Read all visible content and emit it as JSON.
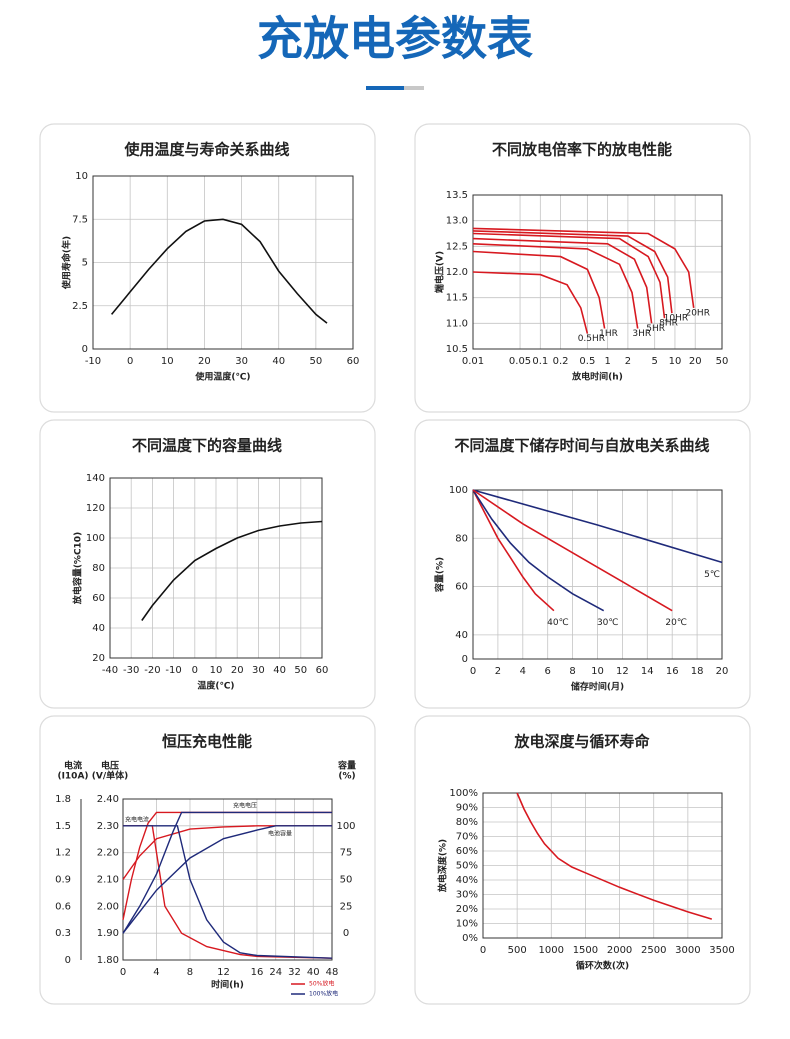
{
  "title": "充放电参数表",
  "chart_data": [
    {
      "type": "line",
      "title": "使用温度与寿命关系曲线",
      "xlabel": "使用温度(℃)",
      "ylabel": "使用寿命(年)",
      "grid": true,
      "xlim": [
        -10,
        60
      ],
      "xticks": [
        -10,
        0,
        10,
        20,
        30,
        40,
        50,
        60
      ],
      "ylim": [
        0,
        10
      ],
      "yticks": [
        0,
        2.5,
        5,
        7.5,
        10
      ],
      "series": [
        {
          "color": "#111111",
          "x": [
            -5,
            0,
            5,
            10,
            15,
            20,
            25,
            30,
            35,
            40,
            45,
            50,
            53
          ],
          "values": [
            2,
            3.3,
            4.6,
            5.8,
            6.8,
            7.4,
            7.5,
            7.2,
            6.2,
            4.5,
            3.2,
            2,
            1.5
          ]
        }
      ]
    },
    {
      "type": "line",
      "title": "不同放电倍率下的放电性能",
      "xlabel": "放电时间(h)",
      "ylabel": "端电压(V)",
      "grid": true,
      "xscale": "log",
      "xlim": [
        0.01,
        50
      ],
      "xticks": [
        0.01,
        0.05,
        0.1,
        0.2,
        0.5,
        1,
        2,
        5,
        10,
        20,
        50
      ],
      "ylim": [
        10.5,
        13.5
      ],
      "yticks": [
        {
          "value": 10.5,
          "label": "10.5"
        },
        {
          "value": 11,
          "label": "11.0"
        },
        {
          "value": 11.5,
          "label": "11.5"
        },
        {
          "value": 12,
          "label": "12.0"
        },
        {
          "value": 12.5,
          "label": "12.5"
        },
        {
          "value": 13,
          "label": "13.0"
        },
        {
          "value": 13.5,
          "label": "13.5"
        }
      ],
      "series": [
        {
          "name": "0.5HR",
          "color": "#d71920",
          "x": [
            0.01,
            0.1,
            0.25,
            0.4,
            0.5
          ],
          "values": [
            12.0,
            11.95,
            11.75,
            11.3,
            10.8
          ]
        },
        {
          "name": "1HR",
          "color": "#d71920",
          "x": [
            0.01,
            0.2,
            0.5,
            0.75,
            0.9
          ],
          "values": [
            12.4,
            12.3,
            12.05,
            11.5,
            10.9
          ]
        },
        {
          "name": "3HR",
          "color": "#d71920",
          "x": [
            0.01,
            0.5,
            1.5,
            2.3,
            2.8
          ],
          "values": [
            12.55,
            12.45,
            12.15,
            11.6,
            10.9
          ]
        },
        {
          "name": "5HR",
          "color": "#d71920",
          "x": [
            0.01,
            1,
            2.5,
            3.8,
            4.5
          ],
          "values": [
            12.65,
            12.55,
            12.25,
            11.7,
            11.0
          ]
        },
        {
          "name": "8HR",
          "color": "#d71920",
          "x": [
            0.01,
            1.5,
            4,
            6,
            7
          ],
          "values": [
            12.75,
            12.65,
            12.3,
            11.8,
            11.1
          ]
        },
        {
          "name": "10HR",
          "color": "#d71920",
          "x": [
            0.01,
            2,
            5,
            7.8,
            9
          ],
          "values": [
            12.8,
            12.7,
            12.4,
            11.9,
            11.2
          ]
        },
        {
          "name": "20HR",
          "color": "#d71920",
          "x": [
            0.01,
            4,
            10,
            16,
            19
          ],
          "values": [
            12.85,
            12.75,
            12.45,
            12.0,
            11.3
          ]
        }
      ]
    },
    {
      "type": "line",
      "title": "不同温度下的容量曲线",
      "xlabel": "温度(℃)",
      "ylabel": "放电容量(%C10)",
      "grid": true,
      "xlim": [
        -40,
        60
      ],
      "xticks": [
        -40,
        -30,
        -20,
        -10,
        0,
        10,
        20,
        30,
        40,
        50,
        60
      ],
      "ylim": [
        20,
        140
      ],
      "yticks": [
        20,
        40,
        60,
        80,
        100,
        120,
        140
      ],
      "series": [
        {
          "color": "#111111",
          "x": [
            -25,
            -20,
            -10,
            0,
            10,
            20,
            30,
            40,
            50,
            60
          ],
          "values": [
            45,
            55,
            72,
            85,
            93,
            100,
            105,
            108,
            110,
            111
          ]
        }
      ]
    },
    {
      "type": "line",
      "title": "不同温度下储存时间与自放电关系曲线",
      "xlabel": "储存时间(月)",
      "ylabel": "容量(%)",
      "grid": true,
      "xlim": [
        0,
        20
      ],
      "xticks": [
        0,
        2,
        4,
        6,
        8,
        10,
        12,
        14,
        16,
        18,
        20
      ],
      "ylim": [
        30,
        100
      ],
      "yticks": [
        {
          "value": 30,
          "label": "0"
        },
        40,
        60,
        80,
        100
      ],
      "series": [
        {
          "name": "5℃",
          "color": "#1f2a7a",
          "x": [
            0,
            10,
            20
          ],
          "values": [
            100,
            85.5,
            70
          ]
        },
        {
          "name": "40℃",
          "color": "#d71920",
          "x": [
            0,
            1,
            2,
            3,
            4,
            5,
            6.5
          ],
          "values": [
            100,
            90,
            80,
            72,
            64,
            57,
            50
          ]
        },
        {
          "name": "30℃",
          "color": "#1f2a7a",
          "x": [
            0,
            1.5,
            3,
            4.5,
            6,
            8,
            10.5
          ],
          "values": [
            100,
            88,
            78,
            70,
            64,
            57,
            50
          ]
        },
        {
          "name": "20℃",
          "color": "#d71920",
          "x": [
            0,
            4,
            8,
            12,
            16
          ],
          "values": [
            100,
            86,
            74,
            62,
            50
          ]
        }
      ]
    },
    {
      "type": "multi_axis_line",
      "title": "恒压充电性能",
      "xlabel": "时间(h)",
      "grid": true,
      "xlim": [
        0,
        48
      ],
      "xticks": [
        0,
        4,
        8,
        12,
        16,
        24,
        32,
        40,
        48
      ],
      "axes": {
        "current": {
          "title": "电流",
          "unit": "(I10A)",
          "ylim": [
            0,
            1.8
          ],
          "yticks": [
            0,
            0.3,
            0.6,
            0.9,
            1.2,
            1.5,
            1.8
          ]
        },
        "voltage": {
          "title": "电压",
          "unit": "(V/单体)",
          "ylim": [
            1.8,
            2.4
          ],
          "yticks": [
            {
              "value": 1.8,
              "label": "1.80"
            },
            {
              "value": 1.9,
              "label": "1.90"
            },
            {
              "value": 2,
              "label": "2.00"
            },
            {
              "value": 2.1,
              "label": "2.10"
            },
            {
              "value": 2.2,
              "label": "2.20"
            },
            {
              "value": 2.3,
              "label": "2.30"
            },
            {
              "value": 2.4,
              "label": "2.40"
            }
          ]
        },
        "capacity": {
          "title": "容量",
          "unit": "(%)",
          "ylim": [
            -25,
            125
          ],
          "yticks": [
            0,
            25,
            50,
            75,
            100
          ]
        }
      },
      "annotations": {
        "voltage": "充电电压",
        "current": "充电电流",
        "capacity": "电池容量"
      },
      "series": [
        {
          "name": "50%放电",
          "color": "#d71920",
          "voltage": {
            "x": [
              0,
              1,
              2,
              3,
              4,
              48
            ],
            "values": [
              1.95,
              2.1,
              2.22,
              2.31,
              2.35,
              2.35
            ]
          },
          "current": {
            "x": [
              0,
              3.5,
              5,
              7,
              10,
              14,
              16,
              48
            ],
            "values": [
              1.5,
              1.5,
              0.6,
              0.3,
              0.15,
              0.06,
              0.04,
              0.02
            ]
          },
          "capacity": {
            "x": [
              0,
              2,
              4,
              8,
              12,
              16,
              48
            ],
            "values": [
              50,
              72,
              88,
              97,
              99,
              100,
              100
            ]
          }
        },
        {
          "name": "100%放电",
          "color": "#1f2a7a",
          "voltage": {
            "x": [
              0,
              2,
              4,
              6,
              7,
              48
            ],
            "values": [
              1.9,
              2.0,
              2.12,
              2.28,
              2.35,
              2.35
            ]
          },
          "current": {
            "x": [
              0,
              6.5,
              8,
              10,
              12,
              14,
              16,
              48
            ],
            "values": [
              1.5,
              1.5,
              0.9,
              0.45,
              0.2,
              0.08,
              0.05,
              0.02
            ]
          },
          "capacity": {
            "x": [
              0,
              4,
              8,
              12,
              16,
              24,
              48
            ],
            "values": [
              0,
              40,
              70,
              88,
              96,
              100,
              100
            ]
          }
        }
      ]
    },
    {
      "type": "line",
      "title": "放电深度与循环寿命",
      "xlabel": "循环次数(次)",
      "ylabel": "放电深度(%)",
      "grid": true,
      "xlim": [
        0,
        3500
      ],
      "xticks": [
        0,
        500,
        1000,
        1500,
        2000,
        2500,
        3000,
        3500
      ],
      "ylim": [
        0,
        100
      ],
      "yticks": [
        {
          "value": 0,
          "label": "0%"
        },
        {
          "value": 10,
          "label": "10%"
        },
        {
          "value": 20,
          "label": "20%"
        },
        {
          "value": 30,
          "label": "30%"
        },
        {
          "value": 40,
          "label": "40%"
        },
        {
          "value": 50,
          "label": "50%"
        },
        {
          "value": 60,
          "label": "60%"
        },
        {
          "value": 70,
          "label": "70%"
        },
        {
          "value": 80,
          "label": "80%"
        },
        {
          "value": 90,
          "label": "90%"
        },
        {
          "value": 100,
          "label": "100%"
        }
      ],
      "series": [
        {
          "color": "#d71920",
          "x": [
            500,
            600,
            700,
            800,
            900,
            1100,
            1300,
            1500,
            2000,
            2500,
            3000,
            3350
          ],
          "values": [
            100,
            89,
            80,
            72,
            65,
            55,
            49,
            45,
            35,
            26,
            18,
            13
          ]
        }
      ]
    }
  ]
}
